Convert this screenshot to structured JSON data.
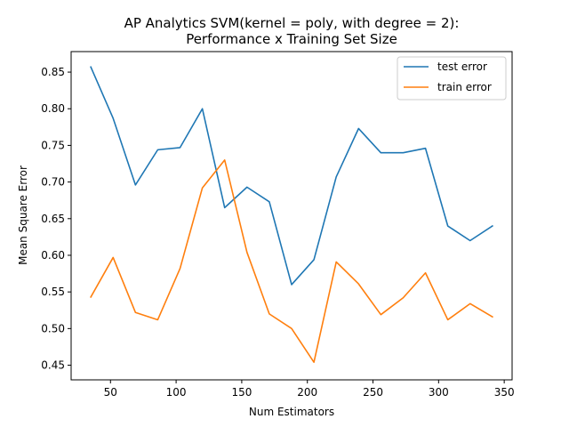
{
  "chart_data": {
    "type": "line",
    "title_line1": "AP Analytics SVM(kernel = poly, with degree = 2):",
    "title_line2": "Performance x Training Set Size",
    "xlabel": "Num Estimators",
    "ylabel": "Mean Square Error",
    "xlim": [
      20,
      356
    ],
    "ylim": [
      0.43,
      0.878
    ],
    "xticks": [
      50,
      100,
      150,
      200,
      250,
      300,
      350
    ],
    "xtick_labels": [
      "50",
      "100",
      "150",
      "200",
      "250",
      "300",
      "350"
    ],
    "yticks": [
      0.45,
      0.5,
      0.55,
      0.6,
      0.65,
      0.7,
      0.75,
      0.8,
      0.85
    ],
    "ytick_labels": [
      "0.45",
      "0.50",
      "0.55",
      "0.60",
      "0.65",
      "0.70",
      "0.75",
      "0.80",
      "0.85"
    ],
    "grid": false,
    "legend_position": "top-right",
    "x": [
      35,
      52,
      69,
      86,
      103,
      120,
      137,
      154,
      171,
      188,
      205,
      222,
      239,
      256,
      273,
      290,
      307,
      324,
      341
    ],
    "series": [
      {
        "name": "test error",
        "color": "#1f77b4",
        "values": [
          0.857,
          0.787,
          0.696,
          0.744,
          0.747,
          0.8,
          0.665,
          0.693,
          0.673,
          0.56,
          0.594,
          0.707,
          0.773,
          0.74,
          0.74,
          0.746,
          0.64,
          0.62,
          0.64
        ]
      },
      {
        "name": "train error",
        "color": "#ff7f0e",
        "values": [
          0.543,
          0.597,
          0.522,
          0.512,
          0.582,
          0.692,
          0.73,
          0.604,
          0.52,
          0.5,
          0.454,
          0.591,
          0.561,
          0.519,
          0.542,
          0.576,
          0.512,
          0.534,
          0.516
        ]
      }
    ]
  }
}
